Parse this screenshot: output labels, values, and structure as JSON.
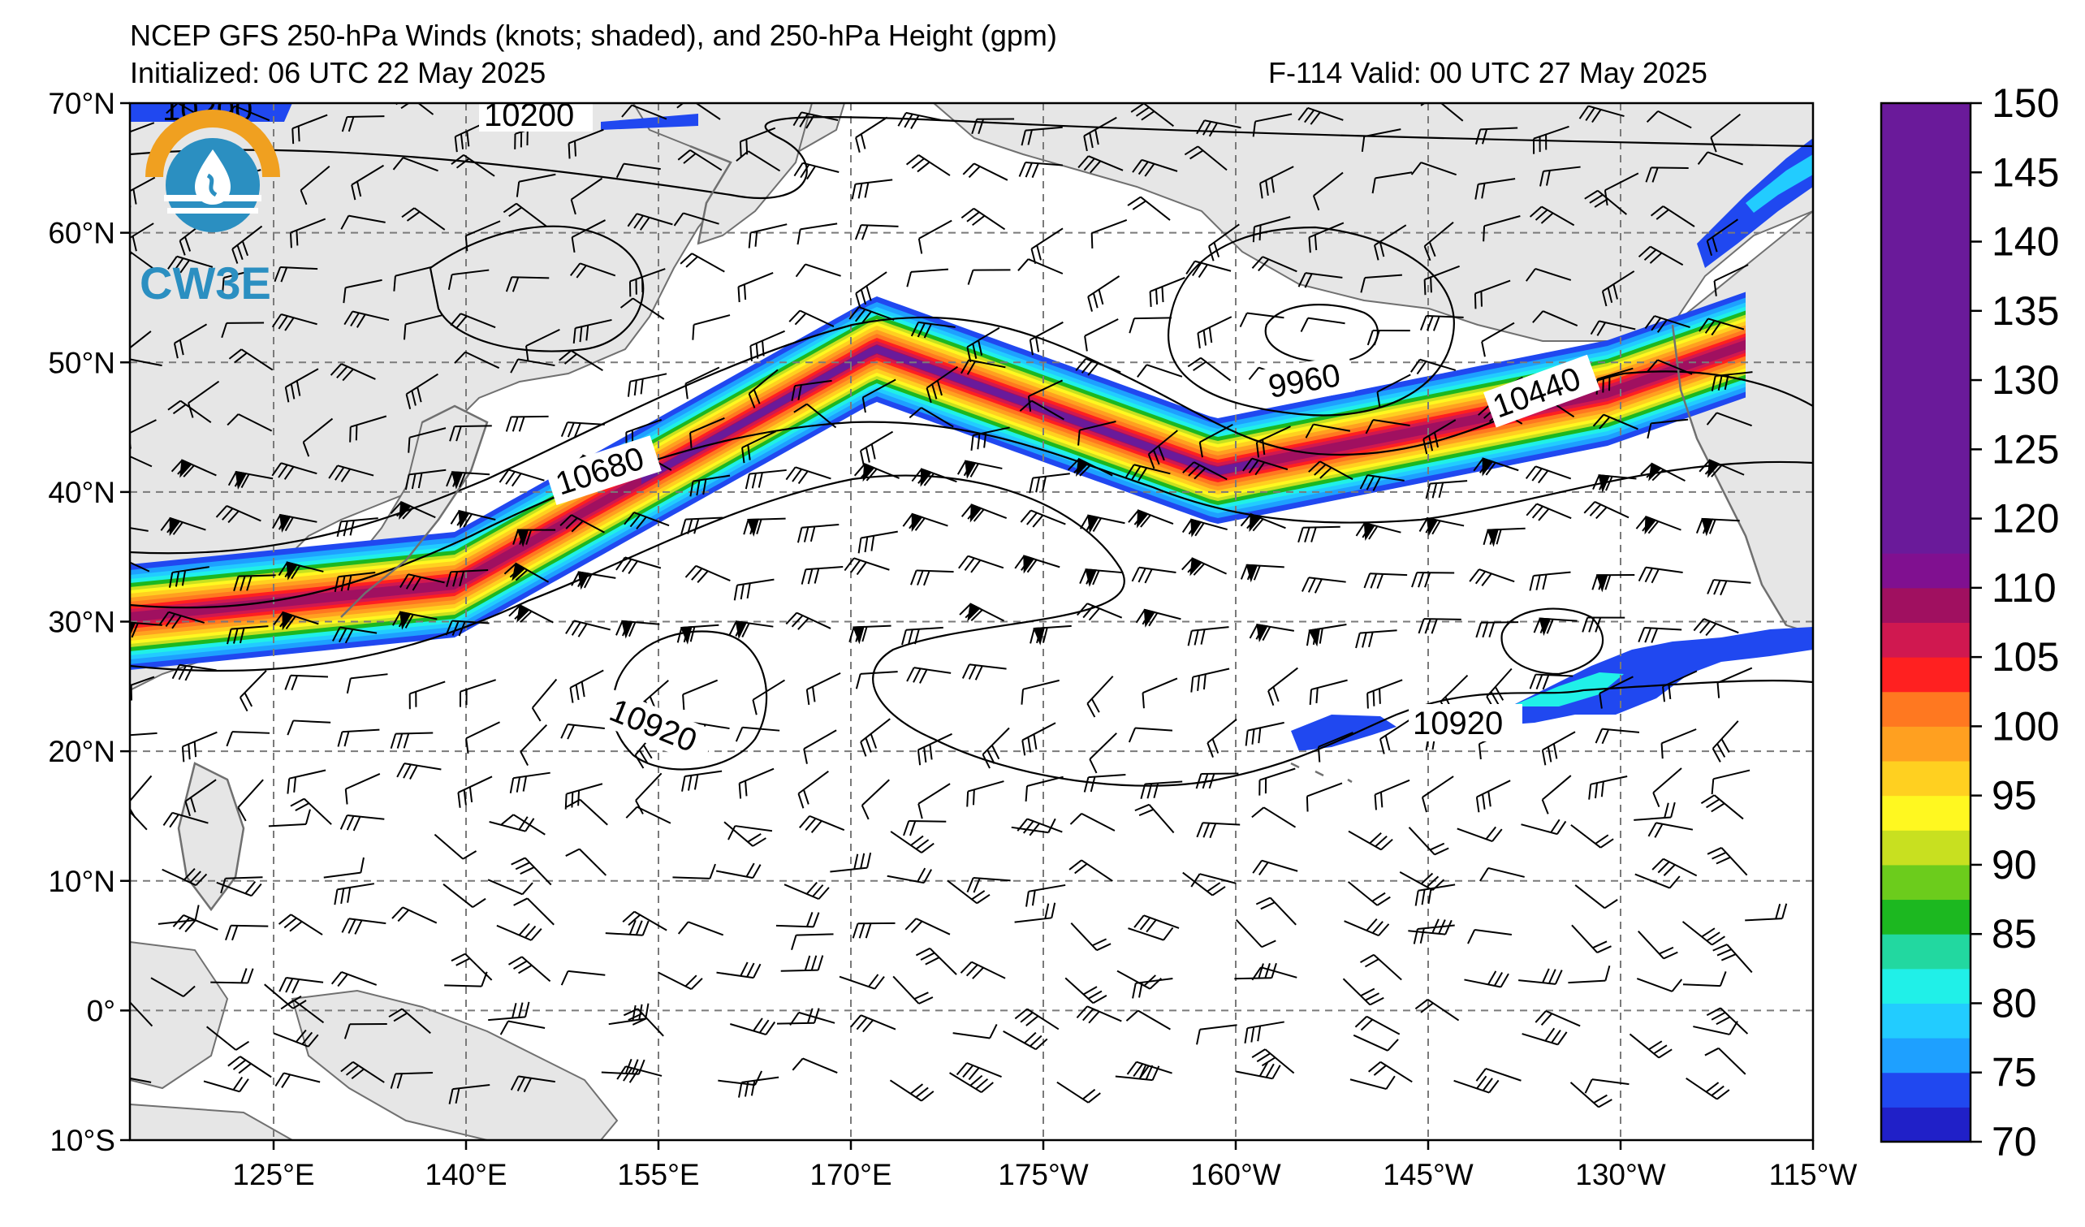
{
  "title": {
    "line1": "NCEP GFS 250-hPa Winds (knots; shaded), and 250-hPa Height (gpm)",
    "init": "Initialized: 06 UTC 22 May 2025",
    "valid": "F-114  Valid: 00 UTC 27 May 2025"
  },
  "logo": {
    "text": "CW3E"
  },
  "lat_labels": [
    "70°N",
    "60°N",
    "50°N",
    "40°N",
    "30°N",
    "20°N",
    "10°N",
    "0°",
    "10°S"
  ],
  "lon_labels": [
    "125°E",
    "140°E",
    "155°E",
    "170°E",
    "175°W",
    "160°W",
    "145°W",
    "130°W",
    "115°W"
  ],
  "colorbar": {
    "ticks": [
      "70",
      "75",
      "80",
      "85",
      "90",
      "95",
      "100",
      "105",
      "110",
      "120",
      "125",
      "130",
      "135",
      "140",
      "145",
      "150"
    ],
    "colors": [
      "#2020c8",
      "#2048f0",
      "#1ea0ff",
      "#22ccff",
      "#20f0e8",
      "#22d8a0",
      "#1cb820",
      "#6ccc1c",
      "#c8e020",
      "#fff820",
      "#ffd020",
      "#ffa020",
      "#ff7820",
      "#ff2020",
      "#d01850",
      "#a01060",
      "#801090",
      "#6a1a9a"
    ]
  },
  "contour_labels": [
    "10200",
    "10200",
    "10680",
    "9960",
    "10440",
    "10920",
    "10920"
  ],
  "colors": {
    "land": "#e6e6e6",
    "coast": "#707070",
    "grid": "#7a7a7a",
    "contour": "#000000",
    "logo_orange": "#f0a020",
    "logo_blue": "#2b8fc1"
  }
}
